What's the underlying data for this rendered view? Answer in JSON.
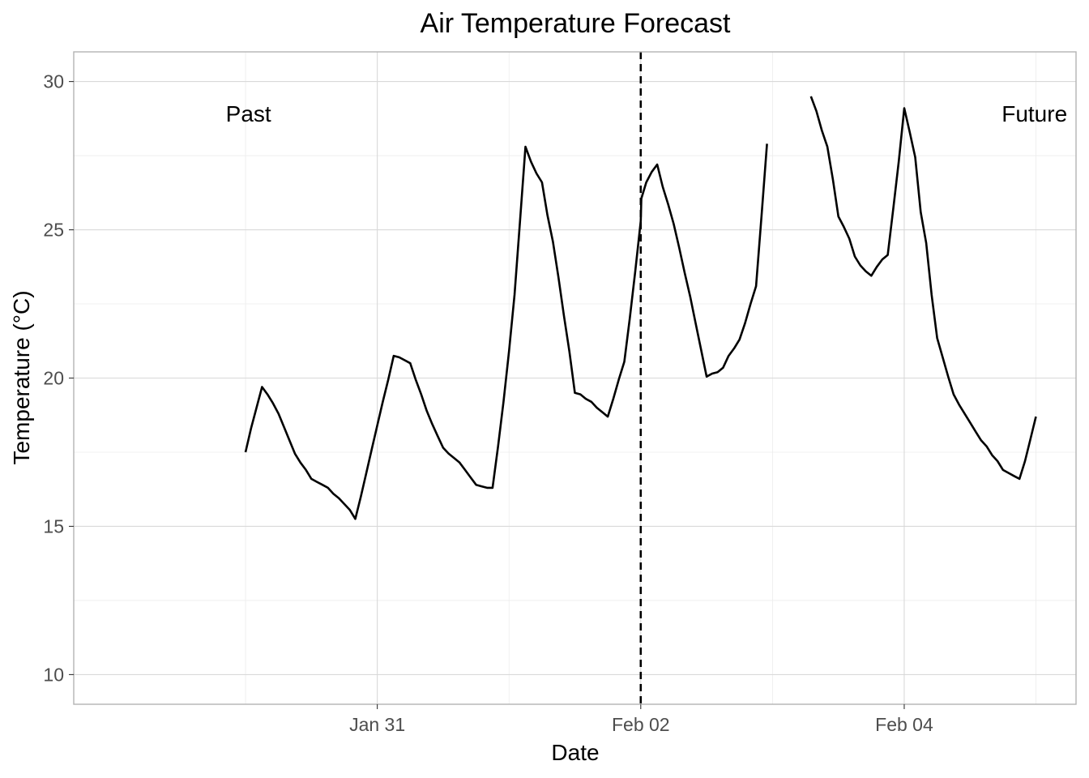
{
  "chart_data": {
    "type": "line",
    "title": "Air Temperature Forecast",
    "xlabel": "Date",
    "ylabel": "Temperature (°C)",
    "x_unit": "hours since 2024-01-30 00:00",
    "xlim": [
      -31.3,
      151.3
    ],
    "ylim": [
      9.0,
      31.0
    ],
    "x_ticks": [
      {
        "value": 24,
        "label": "Jan 31"
      },
      {
        "value": 72,
        "label": "Feb 02"
      },
      {
        "value": 120,
        "label": "Feb 04"
      }
    ],
    "x_minor": [
      0,
      48,
      96,
      144
    ],
    "y_ticks": [
      10,
      15,
      20,
      25,
      30
    ],
    "y_minor": [
      12.5,
      17.5,
      22.5,
      27.5
    ],
    "grid": true,
    "cutoff_x": 72,
    "cutoff_style": "dashed",
    "annotations": [
      {
        "text": "Past",
        "x": -3.6,
        "y": 28.9,
        "anchor": "start"
      },
      {
        "text": "Future",
        "x": 149.7,
        "y": 28.9,
        "anchor": "end"
      }
    ],
    "series": [
      {
        "name": "",
        "color": "#000000",
        "segments": [
          [
            [
              0,
              17.5
            ],
            [
              1,
              18.3
            ],
            [
              2,
              19.0
            ],
            [
              3,
              19.7
            ],
            [
              4,
              19.45
            ],
            [
              5,
              19.15
            ],
            [
              6,
              18.8
            ],
            [
              7,
              18.35
            ],
            [
              8,
              17.9
            ],
            [
              9,
              17.45
            ],
            [
              10,
              17.15
            ],
            [
              11,
              16.9
            ],
            [
              12,
              16.6
            ],
            [
              13,
              16.5
            ],
            [
              14,
              16.4
            ],
            [
              15,
              16.3
            ],
            [
              16,
              16.1
            ],
            [
              17,
              15.95
            ],
            [
              18,
              15.75
            ],
            [
              19,
              15.55
            ],
            [
              20,
              15.25
            ],
            [
              21,
              16.0
            ],
            [
              22,
              16.8
            ],
            [
              23,
              17.6
            ],
            [
              24,
              18.4
            ],
            [
              25,
              19.2
            ],
            [
              26,
              19.95
            ],
            [
              27,
              20.75
            ],
            [
              28,
              20.7
            ],
            [
              29,
              20.6
            ],
            [
              30,
              20.5
            ],
            [
              31,
              19.95
            ],
            [
              32,
              19.45
            ],
            [
              33,
              18.9
            ],
            [
              34,
              18.45
            ],
            [
              35,
              18.05
            ],
            [
              36,
              17.65
            ],
            [
              37,
              17.45
            ],
            [
              38,
              17.3
            ],
            [
              39,
              17.15
            ],
            [
              40,
              16.9
            ],
            [
              41,
              16.65
            ],
            [
              42,
              16.4
            ],
            [
              43,
              16.35
            ],
            [
              44,
              16.3
            ],
            [
              45,
              16.3
            ],
            [
              46,
              17.7
            ],
            [
              47,
              19.2
            ],
            [
              48,
              20.9
            ],
            [
              49,
              22.8
            ],
            [
              50,
              25.3
            ],
            [
              51,
              27.8
            ],
            [
              52,
              27.3
            ],
            [
              53,
              26.9
            ],
            [
              54,
              26.6
            ],
            [
              55,
              25.5
            ],
            [
              56,
              24.6
            ],
            [
              57,
              23.4
            ],
            [
              58,
              22.1
            ],
            [
              59,
              20.9
            ],
            [
              60,
              19.5
            ],
            [
              61,
              19.45
            ],
            [
              62,
              19.3
            ],
            [
              63,
              19.2
            ],
            [
              64,
              19.0
            ],
            [
              65,
              18.85
            ],
            [
              66,
              18.7
            ],
            [
              67,
              19.3
            ],
            [
              68,
              19.95
            ],
            [
              69,
              20.55
            ],
            [
              70,
              22.0
            ],
            [
              71,
              23.6
            ],
            [
              72,
              25.3
            ],
            [
              72.1,
              26.05
            ],
            [
              73,
              26.6
            ],
            [
              74,
              26.95
            ],
            [
              75,
              27.2
            ],
            [
              76,
              26.45
            ],
            [
              77,
              25.85
            ],
            [
              78,
              25.2
            ],
            [
              79,
              24.4
            ],
            [
              80,
              23.55
            ],
            [
              81,
              22.75
            ],
            [
              82,
              21.85
            ],
            [
              83,
              20.95
            ],
            [
              84,
              20.05
            ],
            [
              85,
              20.15
            ],
            [
              86,
              20.2
            ],
            [
              87,
              20.35
            ],
            [
              88,
              20.75
            ],
            [
              89,
              21.0
            ],
            [
              90,
              21.3
            ],
            [
              91,
              21.85
            ],
            [
              92,
              22.5
            ],
            [
              93,
              23.1
            ],
            [
              94,
              25.45
            ],
            [
              95,
              27.9
            ]
          ],
          [
            [
              103,
              29.5
            ],
            [
              104,
              29.0
            ],
            [
              105,
              28.35
            ],
            [
              106,
              27.8
            ],
            [
              107,
              26.7
            ],
            [
              108,
              25.45
            ],
            [
              109,
              25.1
            ],
            [
              110,
              24.7
            ],
            [
              111,
              24.1
            ],
            [
              112,
              23.8
            ],
            [
              113,
              23.6
            ],
            [
              114,
              23.45
            ],
            [
              115,
              23.75
            ],
            [
              116,
              24.0
            ],
            [
              117,
              24.15
            ],
            [
              118,
              25.7
            ],
            [
              119,
              27.3
            ],
            [
              120,
              29.1
            ],
            [
              121,
              28.3
            ],
            [
              122,
              27.45
            ],
            [
              123,
              25.6
            ],
            [
              124,
              24.55
            ],
            [
              125,
              22.8
            ],
            [
              126,
              21.35
            ],
            [
              127,
              20.7
            ],
            [
              128,
              20.05
            ],
            [
              129,
              19.45
            ],
            [
              130,
              19.1
            ],
            [
              131,
              18.8
            ],
            [
              132,
              18.5
            ],
            [
              133,
              18.2
            ],
            [
              134,
              17.9
            ],
            [
              135,
              17.7
            ],
            [
              136,
              17.4
            ],
            [
              137,
              17.2
            ],
            [
              138,
              16.9
            ],
            [
              139,
              16.8
            ],
            [
              140,
              16.7
            ],
            [
              141,
              16.6
            ],
            [
              142,
              17.2
            ],
            [
              143,
              17.95
            ],
            [
              144,
              18.7
            ]
          ]
        ]
      }
    ]
  }
}
